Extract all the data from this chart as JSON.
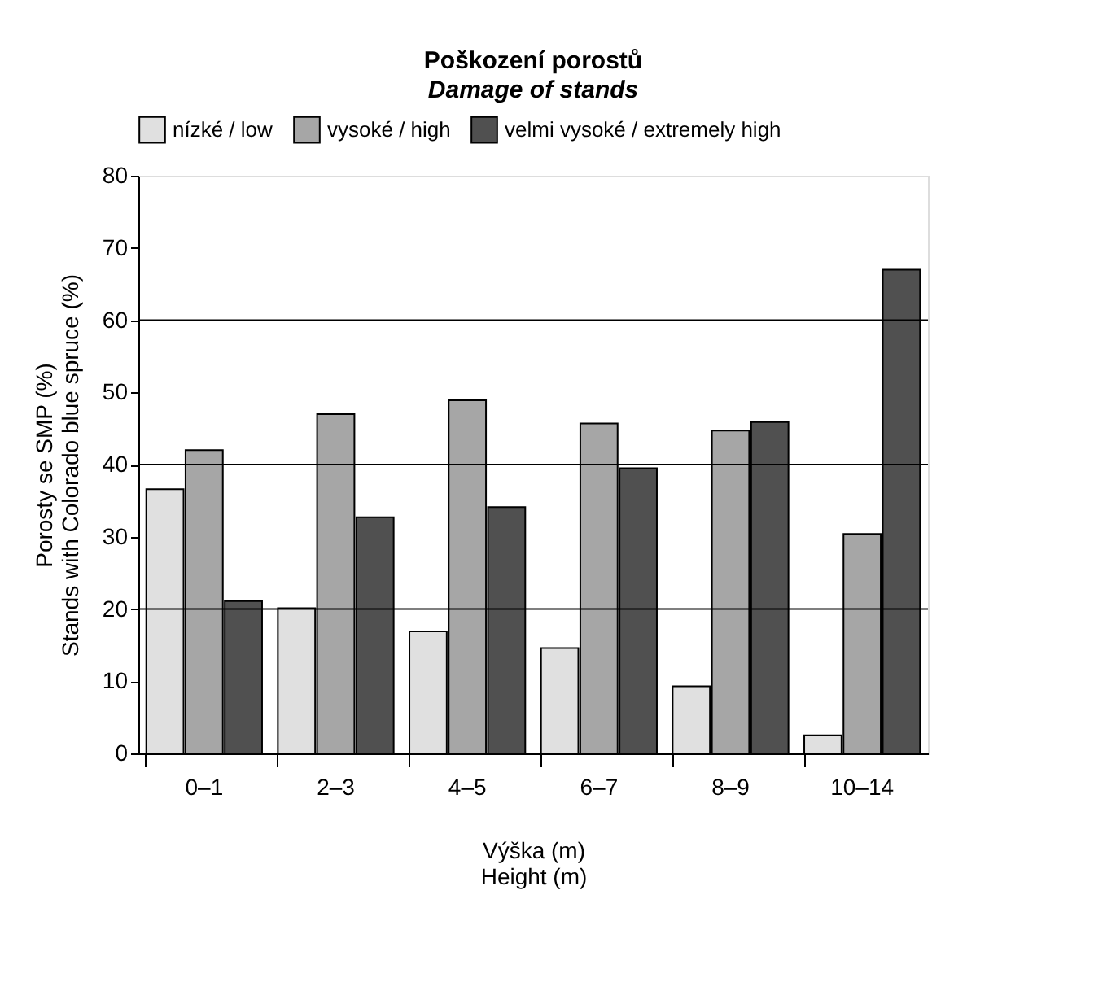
{
  "chart_data": {
    "type": "bar",
    "title": "Poškození porostů",
    "subtitle": "Damage of stands",
    "xlabel": "Výška (m)\nHeight (m)",
    "ylabel": "Porosty se SMP (%)\nStands with Colorado blue spruce (%)",
    "categories": [
      "0–1",
      "2–3",
      "4–5",
      "6–7",
      "8–9",
      "10–14"
    ],
    "series": [
      {
        "name": "nízké / low",
        "color": "#e0e0e0",
        "values": [
          36.6,
          20.1,
          16.9,
          14.6,
          9.3,
          2.5
        ]
      },
      {
        "name": "vysoké / high",
        "color": "#a6a6a6",
        "values": [
          42,
          47,
          48.9,
          45.7,
          44.7,
          30.4
        ]
      },
      {
        "name": "velmi vysoké / extremely high",
        "color": "#505050",
        "values": [
          21.1,
          32.7,
          34.1,
          39.5,
          45.9,
          67
        ]
      }
    ],
    "ylim": [
      0,
      80
    ],
    "yticks": [
      0,
      10,
      20,
      30,
      40,
      50,
      60,
      70,
      80
    ],
    "ref_lines": [
      {
        "axis": "y",
        "value": 20
      },
      {
        "axis": "y",
        "value": 40
      },
      {
        "axis": "y",
        "value": 60
      }
    ],
    "grid": false,
    "legend": "top"
  }
}
